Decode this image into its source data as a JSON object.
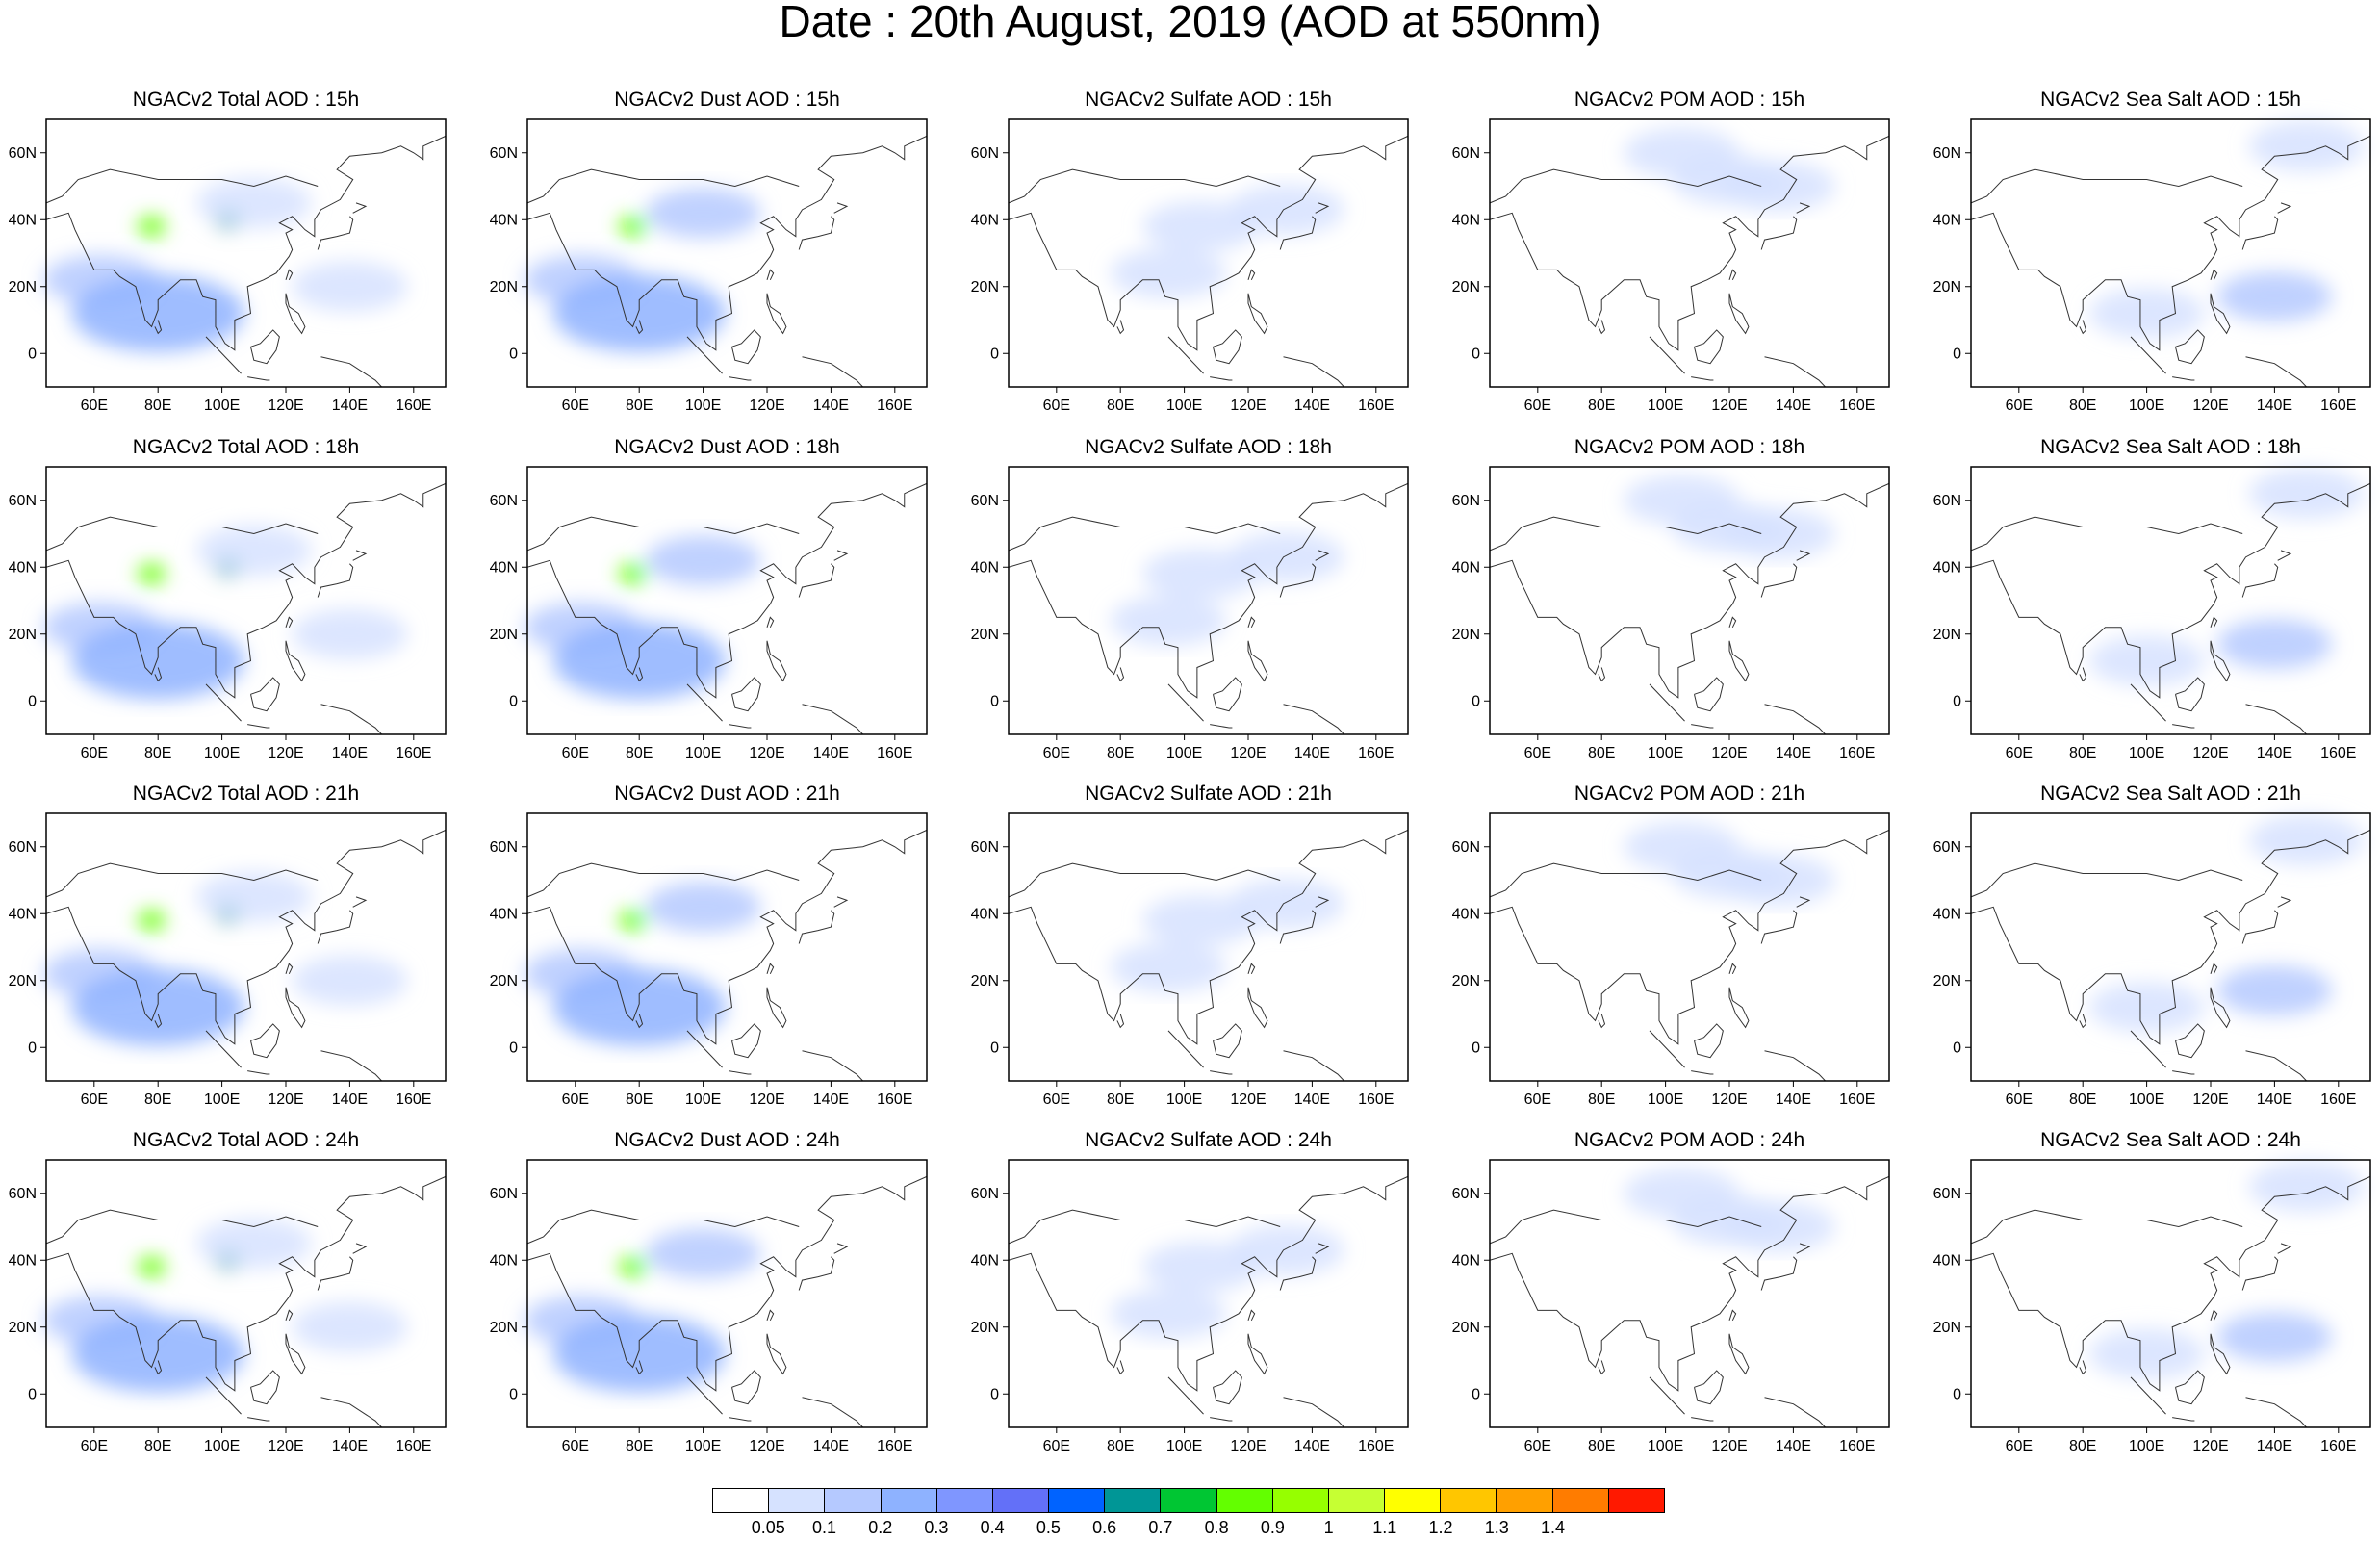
{
  "title": "Date : 20th August, 2019 (AOD at 550nm)",
  "map_extent": {
    "lon": [
      45,
      170
    ],
    "lat": [
      -10,
      70
    ]
  },
  "x_ticks": [
    "60E",
    "80E",
    "100E",
    "120E",
    "140E",
    "160E"
  ],
  "x_tick_values": [
    60,
    80,
    100,
    120,
    140,
    160
  ],
  "y_ticks": [
    "60N",
    "40N",
    "20N",
    "0"
  ],
  "y_tick_values": [
    60,
    40,
    20,
    0
  ],
  "panel_titles": [
    [
      "NGACv2 Total AOD : 15h",
      "NGACv2 Dust AOD : 15h",
      "NGACv2 Sulfate AOD : 15h",
      "NGACv2 POM AOD : 15h",
      "NGACv2 Sea Salt AOD : 15h"
    ],
    [
      "NGACv2 Total AOD : 18h",
      "NGACv2 Dust AOD : 18h",
      "NGACv2 Sulfate AOD : 18h",
      "NGACv2 POM AOD : 18h",
      "NGACv2 Sea Salt AOD : 18h"
    ],
    [
      "NGACv2 Total AOD : 21h",
      "NGACv2 Dust AOD : 21h",
      "NGACv2 Sulfate AOD : 21h",
      "NGACv2 POM AOD : 21h",
      "NGACv2 Sea Salt AOD : 21h"
    ],
    [
      "NGACv2 Total AOD : 24h",
      "NGACv2 Dust AOD : 24h",
      "NGACv2 Sulfate AOD : 24h",
      "NGACv2 POM AOD : 24h",
      "NGACv2 Sea Salt  AOD : 24h"
    ]
  ],
  "colorbar": {
    "colors": [
      "#ffffff",
      "#d6e2ff",
      "#b5c9ff",
      "#8eb2ff",
      "#7f96ff",
      "#6370f8",
      "#0063ff",
      "#009696",
      "#00c633",
      "#63ff00",
      "#96ff00",
      "#c6ff33",
      "#ffff00",
      "#ffc600",
      "#ffa000",
      "#ff7c00",
      "#ff1900"
    ],
    "labels": [
      "0.05",
      "0.1",
      "0.2",
      "0.3",
      "0.4",
      "0.5",
      "0.6",
      "0.7",
      "0.8",
      "0.9",
      "1",
      "1.1",
      "1.2",
      "1.3",
      "1.4"
    ]
  },
  "aerosol_fields": {
    "total": [
      {
        "lon": 62,
        "lat": 22,
        "level": 2
      },
      {
        "lon": 80,
        "lat": 12,
        "level": 3
      },
      {
        "lon": 78,
        "lat": 38,
        "level": 9
      },
      {
        "lon": 102,
        "lat": 40,
        "level": 7
      },
      {
        "lon": 110,
        "lat": 45,
        "level": 1
      },
      {
        "lon": 140,
        "lat": 20,
        "level": 1
      }
    ],
    "dust": [
      {
        "lon": 62,
        "lat": 22,
        "level": 2
      },
      {
        "lon": 80,
        "lat": 12,
        "level": 3
      },
      {
        "lon": 78,
        "lat": 38,
        "level": 9
      },
      {
        "lon": 100,
        "lat": 42,
        "level": 2
      }
    ],
    "sulfate": [
      {
        "lon": 105,
        "lat": 38,
        "level": 1
      },
      {
        "lon": 132,
        "lat": 43,
        "level": 1
      },
      {
        "lon": 95,
        "lat": 24,
        "level": 1
      }
    ],
    "pom": [
      {
        "lon": 120,
        "lat": 52,
        "level": 1
      },
      {
        "lon": 105,
        "lat": 60,
        "level": 1
      },
      {
        "lon": 135,
        "lat": 50,
        "level": 1
      }
    ],
    "seasalt": [
      {
        "lon": 100,
        "lat": 12,
        "level": 1
      },
      {
        "lon": 140,
        "lat": 17,
        "level": 2
      },
      {
        "lon": 150,
        "lat": 62,
        "level": 1
      }
    ]
  }
}
